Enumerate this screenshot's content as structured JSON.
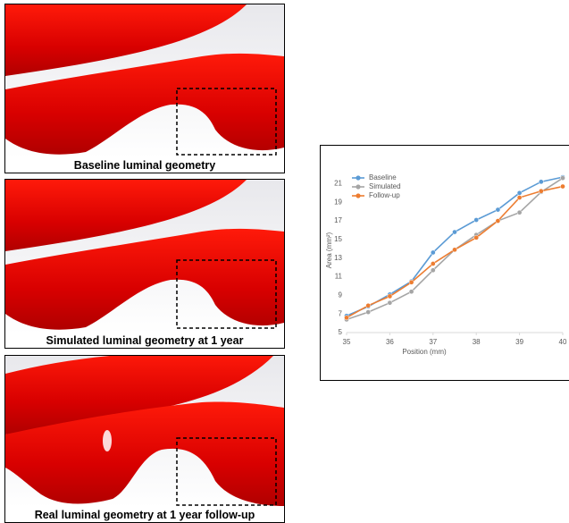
{
  "panels": [
    {
      "caption": "Baseline luminal geometry"
    },
    {
      "caption": "Simulated luminal geometry  at 1 year"
    },
    {
      "caption": "Real luminal geometry at 1 year follow-up"
    }
  ],
  "chart_data": {
    "type": "line",
    "x": [
      35,
      35.5,
      36,
      36.5,
      37,
      37.5,
      38,
      38.5,
      39,
      39.5,
      40
    ],
    "xlabel": "Position (mm)",
    "ylabel": "Area (mm²)",
    "xlim": [
      35,
      40
    ],
    "xticks": [
      35,
      36,
      37,
      38,
      39,
      40
    ],
    "ylim": [
      5,
      22
    ],
    "yticks": [
      5,
      7,
      9,
      11,
      13,
      15,
      17,
      19,
      21
    ],
    "legend": "upper left",
    "series": [
      {
        "name": "Baseline",
        "color": "#5b9bd5",
        "values": [
          6.8,
          7.8,
          9.1,
          10.5,
          13.6,
          15.8,
          17.1,
          18.2,
          20.0,
          21.2,
          21.7
        ]
      },
      {
        "name": "Simulated",
        "color": "#a5a5a5",
        "values": [
          6.4,
          7.2,
          8.2,
          9.4,
          11.7,
          13.9,
          15.5,
          17.0,
          17.9,
          20.1,
          21.6
        ]
      },
      {
        "name": "Follow-up",
        "color": "#ed7d31",
        "values": [
          6.6,
          7.9,
          8.9,
          10.4,
          12.4,
          13.9,
          15.2,
          17.0,
          19.5,
          20.2,
          20.7
        ]
      }
    ]
  }
}
